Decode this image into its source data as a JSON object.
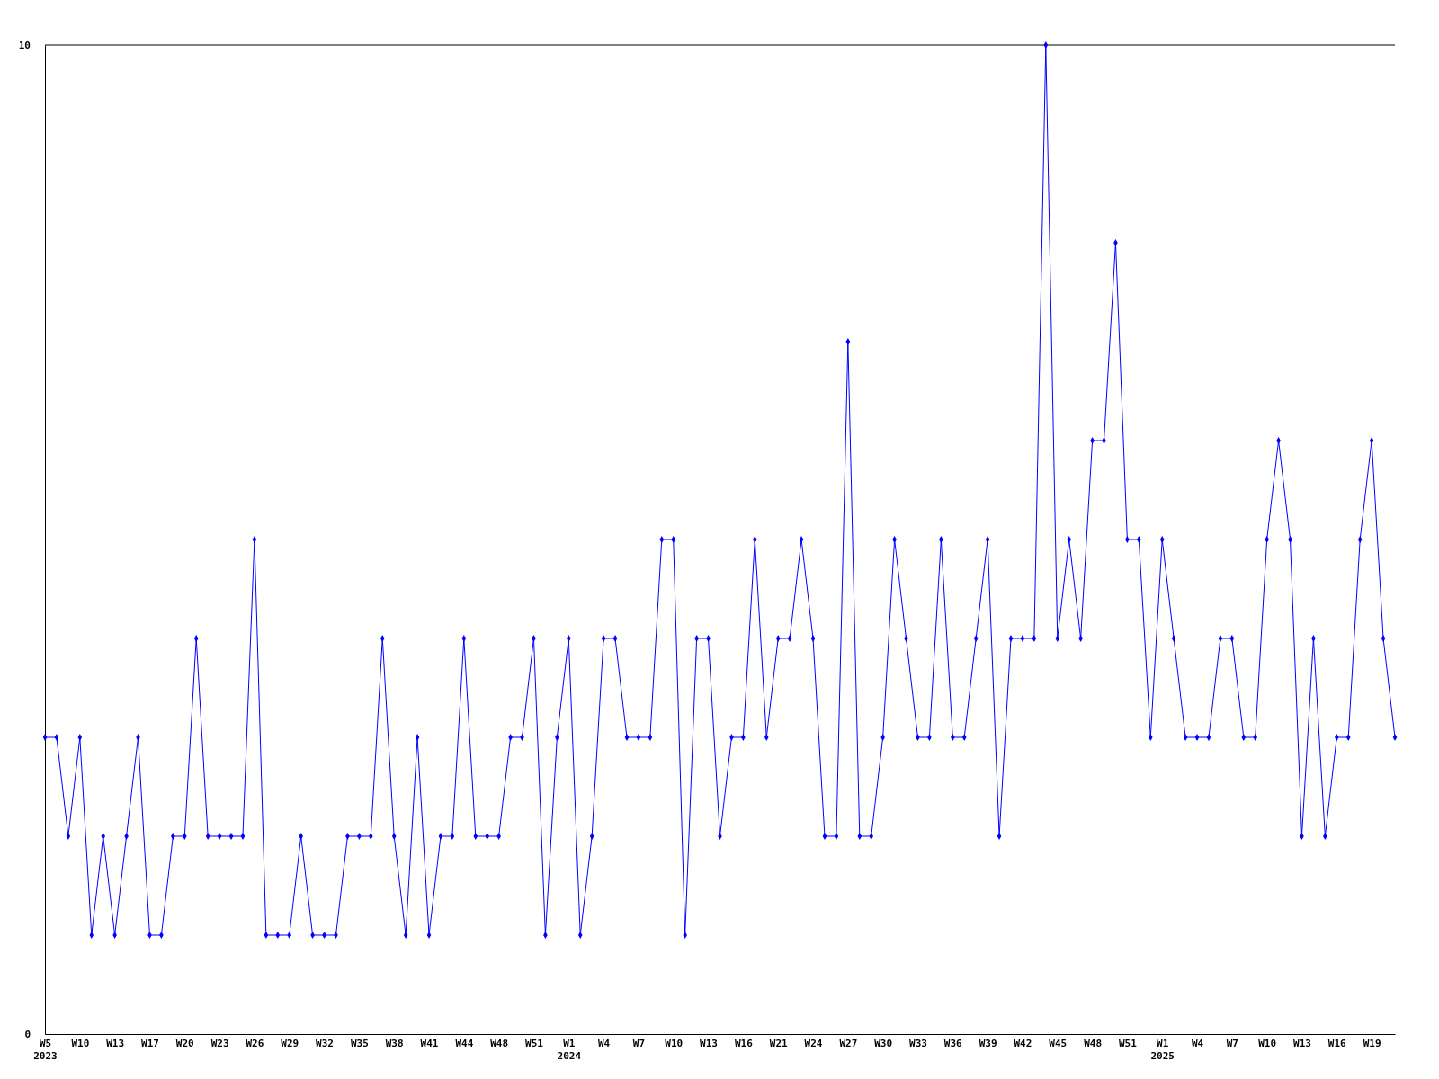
{
  "chart_data": {
    "type": "line",
    "categories": [
      "W5\n2023",
      null,
      null,
      "W10",
      null,
      null,
      "W13",
      null,
      null,
      "W17",
      null,
      null,
      "W20",
      null,
      null,
      "W23",
      null,
      null,
      "W26",
      null,
      null,
      "W29",
      null,
      null,
      "W32",
      null,
      null,
      "W35",
      null,
      null,
      "W38",
      null,
      null,
      "W41",
      null,
      null,
      "W44",
      null,
      null,
      "W48",
      null,
      null,
      "W51",
      null,
      null,
      "W1\n2024",
      null,
      null,
      "W4",
      null,
      null,
      "W7",
      null,
      null,
      "W10",
      null,
      null,
      "W13",
      null,
      null,
      "W16",
      null,
      null,
      "W21",
      null,
      null,
      "W24",
      null,
      null,
      "W27",
      null,
      null,
      "W30",
      null,
      null,
      "W33",
      null,
      null,
      "W36",
      null,
      null,
      "W39",
      null,
      null,
      "W42",
      null,
      null,
      "W45",
      null,
      null,
      "W48",
      null,
      null,
      "W51",
      null,
      null,
      "W1\n2025",
      null,
      null,
      "W4",
      null,
      null,
      "W7",
      null,
      null,
      "W10",
      null,
      null,
      "W13",
      null,
      null,
      "W16",
      null,
      null,
      "W19",
      null,
      null
    ],
    "series": [
      {
        "color": "#0000ff",
        "values": [
          3,
          3,
          2,
          3,
          1,
          2,
          1,
          2,
          3,
          1,
          1,
          2,
          2,
          4,
          2,
          2,
          2,
          2,
          5,
          1,
          1,
          1,
          2,
          1,
          1,
          1,
          2,
          2,
          2,
          4,
          2,
          1,
          3,
          1,
          2,
          2,
          4,
          2,
          2,
          2,
          3,
          3,
          4,
          1,
          3,
          4,
          1,
          2,
          4,
          4,
          3,
          3,
          3,
          5,
          5,
          1,
          4,
          4,
          2,
          3,
          3,
          5,
          3,
          4,
          4,
          5,
          4,
          2,
          2,
          7,
          2,
          2,
          3,
          5,
          4,
          3,
          3,
          5,
          3,
          3,
          4,
          5,
          2,
          4,
          4,
          4,
          10,
          4,
          5,
          4,
          6,
          6,
          8,
          5,
          5,
          3,
          5,
          4,
          3,
          3,
          3,
          4,
          4,
          3,
          3,
          5,
          6,
          5,
          2,
          4,
          2,
          3,
          3,
          5,
          6,
          4,
          3
        ]
      }
    ],
    "ylim": [
      0,
      10
    ],
    "yticks": [
      0,
      10
    ],
    "marker": "diamond",
    "grid": false,
    "legend": false
  }
}
